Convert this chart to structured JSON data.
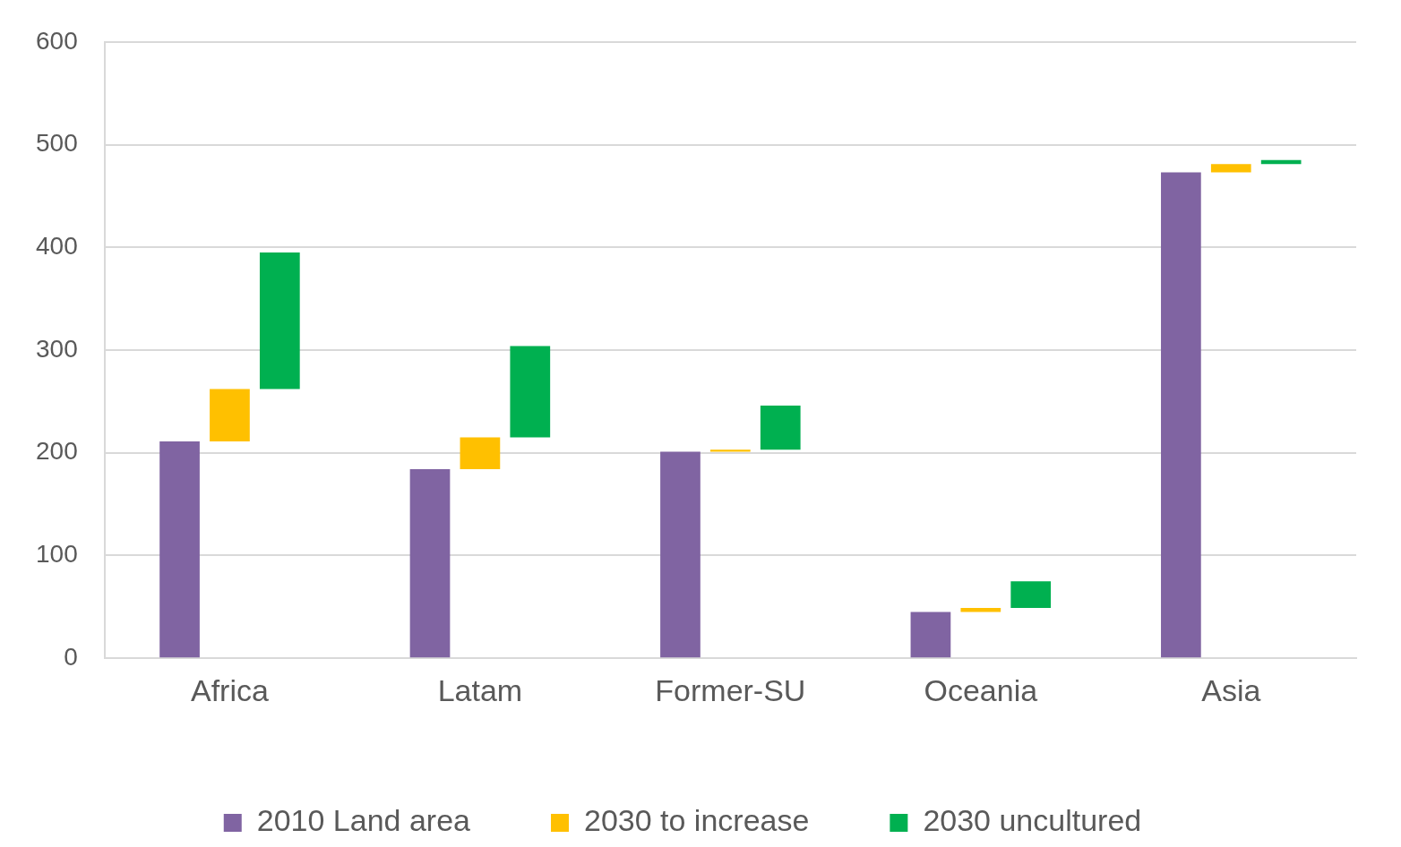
{
  "chart_data": {
    "type": "bar",
    "categories": [
      "Africa",
      "Latam",
      "Former-SU",
      "Oceania",
      "Asia"
    ],
    "series": [
      {
        "name": "2010 Land area",
        "color": "#8064a2",
        "values": [
          211,
          184,
          201,
          45,
          473
        ]
      },
      {
        "name": "2030 to increase",
        "color": "#ffc000",
        "base": [
          211,
          184,
          201,
          45,
          473
        ],
        "values": [
          51,
          31,
          2,
          4,
          8
        ]
      },
      {
        "name": "2030 uncultured",
        "color": "#00b050",
        "base": [
          262,
          215,
          203,
          49,
          481
        ],
        "values": [
          133,
          89,
          43,
          26,
          4
        ]
      }
    ],
    "ylim": [
      0,
      600
    ],
    "yticks": [
      0,
      100,
      200,
      300,
      400,
      500,
      600
    ],
    "grid": "y",
    "legend": "bottom"
  }
}
